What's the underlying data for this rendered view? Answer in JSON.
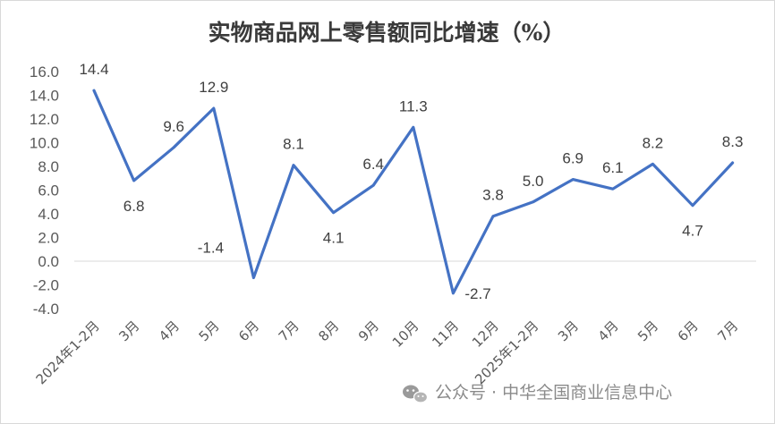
{
  "chart_data": {
    "type": "line",
    "title": "实物商品网上零售额同比增速（%）",
    "xlabel": "",
    "ylabel": "",
    "categories": [
      "2024年1-2月",
      "3月",
      "4月",
      "5月",
      "6月",
      "7月",
      "8月",
      "9月",
      "10月",
      "11月",
      "12月",
      "2025年1-2月",
      "3月",
      "4月",
      "5月",
      "6月",
      "7月"
    ],
    "series": [
      {
        "values": [
          14.4,
          6.8,
          9.6,
          12.9,
          -1.4,
          8.1,
          4.1,
          6.4,
          11.3,
          -2.7,
          3.8,
          5.0,
          6.9,
          6.1,
          8.2,
          4.7,
          8.3
        ]
      }
    ],
    "data_labels": [
      "14.4",
      "6.8",
      "9.6",
      "12.9",
      "-1.4",
      "8.1",
      "4.1",
      "6.4",
      "11.3",
      "-2.7",
      "3.8",
      "5.0",
      "6.9",
      "6.1",
      "8.2",
      "4.7",
      "8.3"
    ],
    "yticks": [
      "16.0",
      "14.0",
      "12.0",
      "10.0",
      "8.0",
      "6.0",
      "4.0",
      "2.0",
      "0.0",
      "-2.0",
      "-4.0"
    ],
    "ylim": [
      -4,
      16
    ],
    "grid": false,
    "legend": "none",
    "line_color": "#4472c4"
  },
  "watermark": {
    "icon": "wechat-icon",
    "text": "公众号 · 中华全国商业信息中心"
  }
}
